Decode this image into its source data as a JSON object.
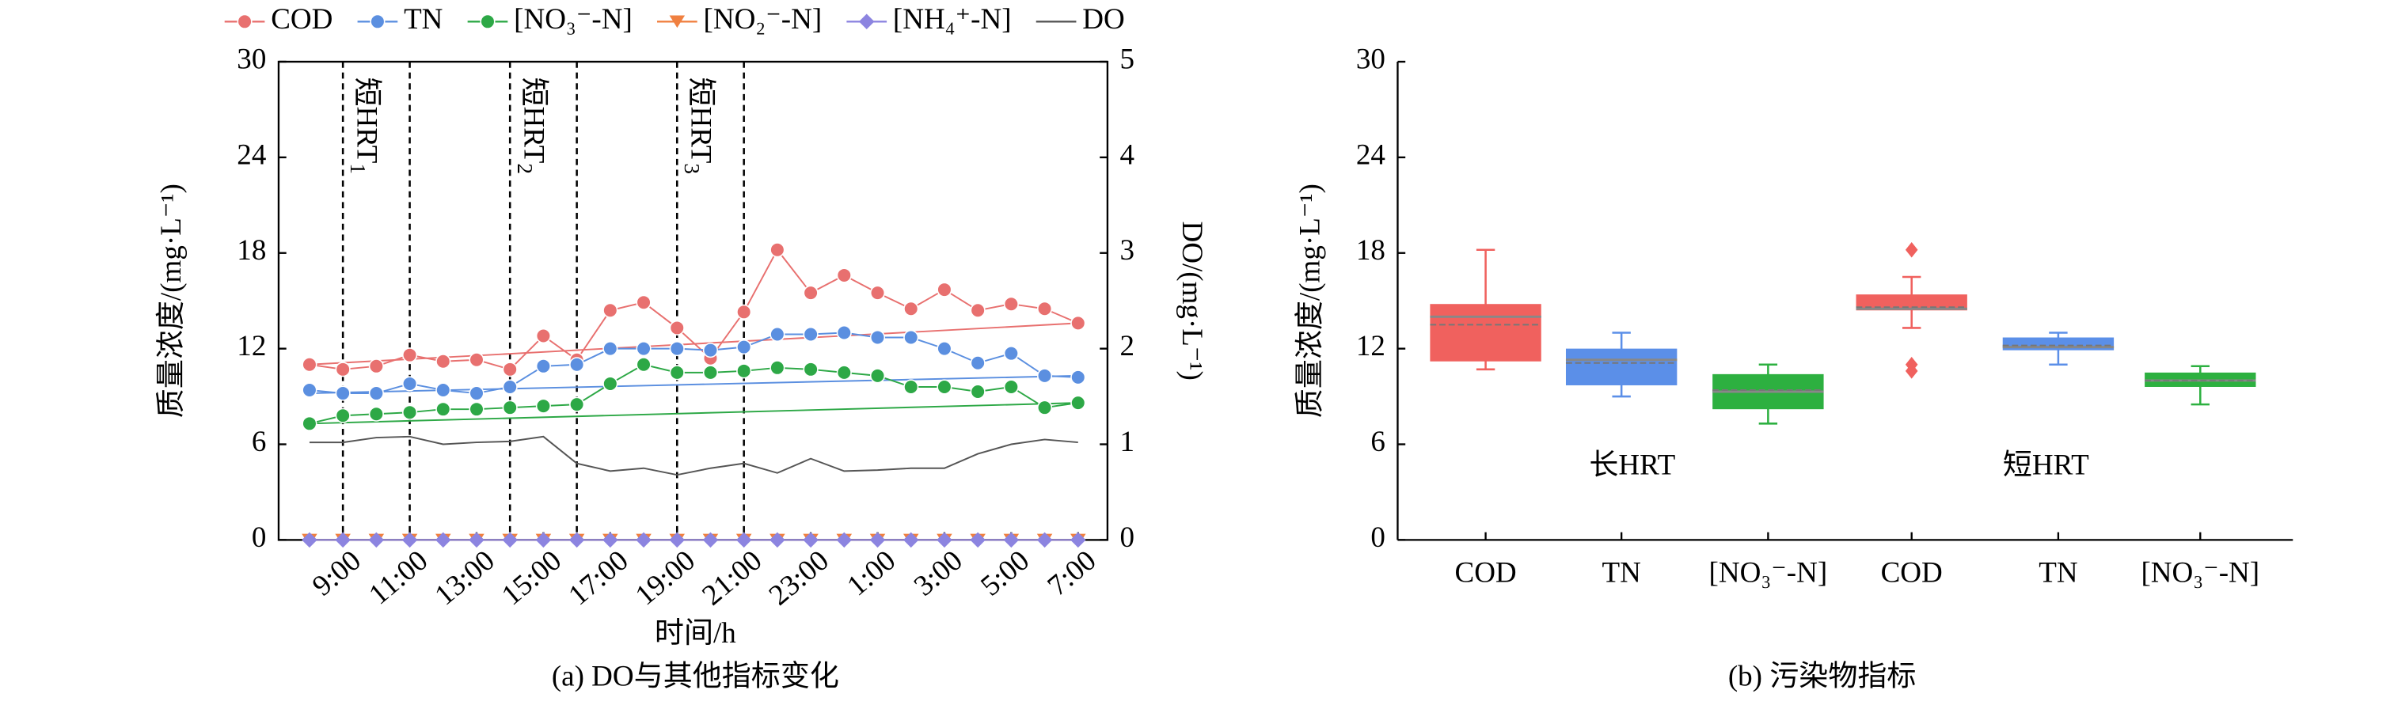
{
  "chart_data": [
    {
      "type": "line",
      "caption": "(a) DO与其他指标变化",
      "xlabel": "时间/h",
      "ylabel": "质量浓度/(mg·L⁻¹)",
      "y2label": "DO/(mg·L⁻¹)",
      "categories": [
        null,
        "9:00",
        null,
        "11:00",
        null,
        "13:00",
        null,
        "15:00",
        null,
        "17:00",
        null,
        "19:00",
        null,
        "21:00",
        null,
        "23:00",
        null,
        "1:00",
        null,
        "3:00",
        null,
        "5:00",
        null,
        "7:00"
      ],
      "ylim": [
        0,
        30
      ],
      "yticks": [
        0,
        6,
        12,
        18,
        24,
        30
      ],
      "y2lim": [
        0,
        5
      ],
      "y2ticks": [
        0,
        1,
        2,
        3,
        4,
        5
      ],
      "periods": [
        {
          "label": "短HRT",
          "sub": "1",
          "from": 1,
          "to": 3
        },
        {
          "label": "短HRT",
          "sub": "2",
          "from": 6,
          "to": 8
        },
        {
          "label": "短HRT",
          "sub": "3",
          "from": 11,
          "to": 13
        }
      ],
      "series": [
        {
          "name": "COD",
          "color": "#e8706f",
          "marker": "circle",
          "values": [
            11.0,
            10.7,
            10.9,
            11.6,
            11.2,
            11.3,
            10.7,
            12.8,
            11.3,
            14.4,
            14.9,
            13.3,
            11.4,
            14.3,
            18.2,
            15.5,
            16.6,
            15.5,
            14.5,
            15.7,
            14.4,
            14.8,
            14.5,
            13.6
          ],
          "trend": [
            11.0,
            13.6
          ]
        },
        {
          "name": "TN",
          "color": "#5b8fe0",
          "marker": "circle",
          "values": [
            9.4,
            9.2,
            9.2,
            9.8,
            9.4,
            9.2,
            9.6,
            10.9,
            11.0,
            12.0,
            12.0,
            12.0,
            11.9,
            12.1,
            12.9,
            12.9,
            13.0,
            12.7,
            12.7,
            12.0,
            11.1,
            11.7,
            10.3,
            10.2
          ],
          "trend": [
            9.2,
            10.3
          ]
        },
        {
          "name": "[NO₃⁻-N]",
          "color": "#2da846",
          "marker": "circle",
          "values": [
            7.3,
            7.8,
            7.9,
            8.0,
            8.2,
            8.2,
            8.3,
            8.4,
            8.5,
            9.8,
            11.0,
            10.5,
            10.5,
            10.6,
            10.8,
            10.7,
            10.5,
            10.3,
            9.6,
            9.6,
            9.3,
            9.6,
            8.3,
            8.6
          ],
          "trend": [
            7.3,
            8.6
          ]
        },
        {
          "name": "[NO₂⁻-N]",
          "color": "#f08040",
          "marker": "triangle",
          "values": [
            0,
            0,
            0,
            0,
            0,
            0,
            0,
            0,
            0,
            0,
            0,
            0,
            0,
            0,
            0,
            0,
            0,
            0,
            0,
            0,
            0,
            0,
            0,
            0
          ]
        },
        {
          "name": "[NH₄⁺-N]",
          "color": "#8c84e0",
          "marker": "diamond",
          "values": [
            0,
            0,
            0,
            0,
            0,
            0,
            0,
            0,
            0,
            0,
            0,
            0,
            0,
            0,
            0,
            0,
            0,
            0,
            0,
            0,
            0,
            0,
            0,
            0
          ]
        },
        {
          "name": "DO",
          "color": "#555555",
          "marker": "none",
          "axis": "y2",
          "values": [
            1.02,
            1.02,
            1.07,
            1.08,
            1.0,
            1.02,
            1.03,
            1.08,
            0.8,
            0.72,
            0.75,
            0.68,
            0.75,
            0.8,
            0.7,
            0.85,
            0.72,
            0.73,
            0.75,
            0.75,
            0.9,
            1.0,
            1.05,
            1.02
          ]
        }
      ]
    },
    {
      "type": "box",
      "caption": "(b) 污染物指标",
      "ylabel": "质量浓度/(mg·L⁻¹)",
      "ylim": [
        0,
        30
      ],
      "yticks": [
        0,
        6,
        12,
        18,
        24,
        30
      ],
      "categories": [
        "COD",
        "TN",
        "[NO₃⁻-N]",
        "COD",
        "TN",
        "[NO₃⁻-N]"
      ],
      "group_labels": [
        "长HRT",
        "短HRT"
      ],
      "colors": [
        "#f0615e",
        "#5b8fe8",
        "#2db040",
        "#f0615e",
        "#5b8fe8",
        "#2db040"
      ],
      "boxes": [
        {
          "q1": 11.2,
          "median": 14.0,
          "q3": 14.8,
          "mean": 13.5,
          "low": 10.7,
          "high": 18.2,
          "outliers": []
        },
        {
          "q1": 9.7,
          "median": 11.3,
          "q3": 12.0,
          "mean": 11.1,
          "low": 9.0,
          "high": 13.0,
          "outliers": []
        },
        {
          "q1": 8.2,
          "median": 9.3,
          "q3": 10.4,
          "mean": 9.4,
          "low": 7.3,
          "high": 11.0,
          "outliers": []
        },
        {
          "q1": 14.4,
          "median": 14.5,
          "q3": 15.4,
          "mean": 14.6,
          "low": 13.3,
          "high": 16.5,
          "outliers": [
            18.2,
            11.0,
            10.6
          ]
        },
        {
          "q1": 11.9,
          "median": 12.1,
          "q3": 12.7,
          "mean": 12.2,
          "low": 11.0,
          "high": 13.0,
          "outliers": []
        },
        {
          "q1": 9.6,
          "median": 10.0,
          "q3": 10.5,
          "mean": 10.0,
          "low": 8.5,
          "high": 10.9,
          "outliers": []
        }
      ]
    }
  ]
}
